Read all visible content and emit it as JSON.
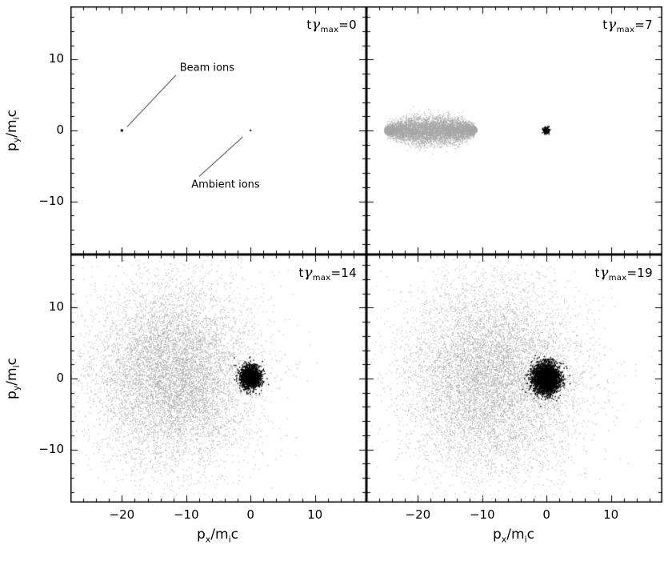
{
  "figure": {
    "background": "#ffffff",
    "frame": "#000000",
    "gray_points": "#a6a6a6",
    "black_points": "#000000"
  },
  "axes": {
    "x_label_parts": [
      "p",
      "x",
      "/m",
      "i",
      "c"
    ],
    "y_label_parts": [
      "p",
      "y",
      "/m",
      "i",
      "c"
    ],
    "x_tick_labels": [
      "−20",
      "−10",
      "0",
      "10"
    ],
    "y_tick_labels": [
      "−10",
      "0",
      "10"
    ]
  },
  "chart_data": {
    "type": "scatter",
    "description": "Ion momentum phase-space (px/mic vs py/mic) of beam ions (gray) and ambient ions (black) at four simulation times",
    "x_range": [
      -28,
      18
    ],
    "y_range": [
      -17.5,
      17.5
    ],
    "x_ticks": [
      -20,
      -10,
      0,
      10
    ],
    "y_ticks": [
      -10,
      0,
      10
    ],
    "minor_tick_step": 2,
    "major_tick_step": 10,
    "grid": false,
    "panels": [
      {
        "id": "t0",
        "label": {
          "t": "t",
          "gamma": "γ",
          "sub": "max",
          "value": "=0"
        },
        "series": [
          {
            "name": "beam-ions",
            "dist": "point",
            "cx": -20,
            "cy": 0,
            "count": 1,
            "marker": 3,
            "color": "black"
          },
          {
            "name": "ambient-ions",
            "dist": "point",
            "cx": 0,
            "cy": 0,
            "count": 1,
            "marker": 2,
            "color": "black"
          }
        ],
        "annotations": [
          {
            "text": "Beam ions",
            "tx": -11.0,
            "ty": 8.8,
            "line": [
              [
                -19.2,
                0.5
              ],
              [
                -11.6,
                7.8
              ]
            ]
          },
          {
            "text": "Ambient ions",
            "tx": -9.2,
            "ty": -7.7,
            "line": [
              [
                -1.2,
                -0.9
              ],
              [
                -8.0,
                -6.5
              ]
            ]
          }
        ]
      },
      {
        "id": "t7",
        "label": {
          "t": "t",
          "gamma": "γ",
          "sub": "max",
          "value": "=7"
        },
        "series": [
          {
            "name": "beam-ions",
            "dist": "lens",
            "cx": -18,
            "cy": 0,
            "sx": 7.2,
            "sy": 1.0,
            "count": 7000,
            "marker": 1,
            "color": "gray"
          },
          {
            "name": "ambient-ions",
            "dist": "gauss",
            "cx": 0,
            "cy": 0,
            "sx": 0.22,
            "sy": 0.22,
            "count": 160,
            "marker": 1.5,
            "color": "black"
          }
        ],
        "annotations": []
      },
      {
        "id": "t14",
        "label": {
          "t": "t",
          "gamma": "γ",
          "sub": "max",
          "value": "=14"
        },
        "series": [
          {
            "name": "beam-ions",
            "dist": "gauss",
            "cx": -12,
            "cy": 0.5,
            "sx": 6.3,
            "sy": 6.3,
            "count": 9000,
            "marker": 1,
            "color": "gray"
          },
          {
            "name": "ambient-ions",
            "dist": "gauss",
            "cx": 0,
            "cy": 0.2,
            "sx": 0.8,
            "sy": 0.8,
            "count": 1500,
            "marker": 1.5,
            "color": "black"
          }
        ],
        "annotations": []
      },
      {
        "id": "t19",
        "label": {
          "t": "t",
          "gamma": "γ",
          "sub": "max",
          "value": "=19"
        },
        "series": [
          {
            "name": "beam-ions",
            "dist": "gauss",
            "cx": -8.5,
            "cy": 0,
            "sx": 6.8,
            "sy": 6.8,
            "count": 9000,
            "marker": 1,
            "color": "gray"
          },
          {
            "name": "ambient-ions",
            "dist": "gauss",
            "cx": 0,
            "cy": 0,
            "sx": 1.05,
            "sy": 1.05,
            "count": 2600,
            "marker": 1.5,
            "color": "black"
          }
        ],
        "annotations": []
      }
    ]
  }
}
